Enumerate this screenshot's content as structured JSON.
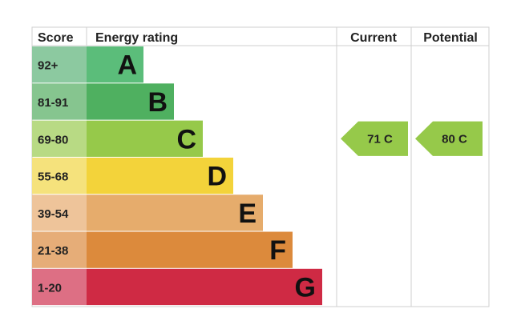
{
  "header": {
    "score": "Score",
    "energy_rating": "Energy rating",
    "current": "Current",
    "potential": "Potential"
  },
  "chart_data": {
    "type": "table",
    "bands": [
      {
        "score": "92+",
        "letter": "A",
        "color": "#5bbd7a",
        "score_color": "#8cc9a0"
      },
      {
        "score": "81-91",
        "letter": "B",
        "color": "#4fb060",
        "score_color": "#86c58f"
      },
      {
        "score": "69-80",
        "letter": "C",
        "color": "#96c94a",
        "score_color": "#b8da84"
      },
      {
        "score": "55-68",
        "letter": "D",
        "color": "#f3d33a",
        "score_color": "#f5e27c"
      },
      {
        "score": "39-54",
        "letter": "E",
        "color": "#e6ac6c",
        "score_color": "#eec49a"
      },
      {
        "score": "21-38",
        "letter": "F",
        "color": "#dc8a3c",
        "score_color": "#e6ad78"
      },
      {
        "score": "1-20",
        "letter": "G",
        "color": "#cf2a44",
        "score_color": "#dd6f84"
      }
    ],
    "current": {
      "score": 71,
      "letter": "C",
      "label": "71  C",
      "color": "#96c94a"
    },
    "potential": {
      "score": 80,
      "letter": "C",
      "label": "80  C",
      "color": "#96c94a"
    }
  }
}
